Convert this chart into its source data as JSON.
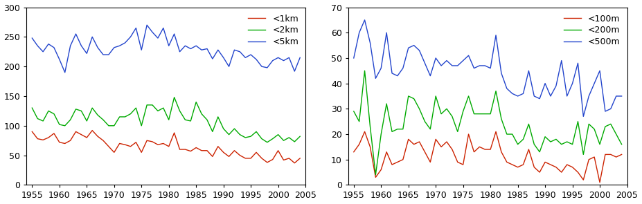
{
  "years": [
    1955,
    1956,
    1957,
    1958,
    1959,
    1960,
    1961,
    1962,
    1963,
    1964,
    1965,
    1966,
    1967,
    1968,
    1969,
    1970,
    1971,
    1972,
    1973,
    1974,
    1975,
    1976,
    1977,
    1978,
    1979,
    1980,
    1981,
    1982,
    1983,
    1984,
    1985,
    1986,
    1987,
    1988,
    1989,
    1990,
    1991,
    1992,
    1993,
    1994,
    1995,
    1996,
    1997,
    1998,
    1999,
    2000,
    2001,
    2002,
    2003,
    2004
  ],
  "left": {
    "lt1km": [
      90,
      78,
      76,
      80,
      87,
      72,
      70,
      75,
      90,
      85,
      80,
      92,
      82,
      75,
      65,
      55,
      70,
      68,
      65,
      72,
      55,
      75,
      73,
      68,
      70,
      65,
      88,
      60,
      60,
      57,
      63,
      58,
      58,
      48,
      65,
      55,
      48,
      58,
      50,
      45,
      45,
      55,
      45,
      38,
      43,
      58,
      42,
      45,
      37,
      45
    ],
    "lt2km": [
      130,
      112,
      108,
      125,
      120,
      102,
      100,
      110,
      128,
      125,
      108,
      130,
      118,
      110,
      100,
      100,
      115,
      115,
      120,
      130,
      100,
      135,
      135,
      125,
      130,
      110,
      148,
      125,
      110,
      108,
      140,
      120,
      110,
      90,
      115,
      95,
      85,
      95,
      85,
      80,
      82,
      90,
      78,
      72,
      78,
      85,
      75,
      80,
      73,
      82
    ],
    "lt5km": [
      248,
      235,
      225,
      238,
      232,
      212,
      190,
      235,
      255,
      235,
      222,
      250,
      232,
      220,
      220,
      232,
      235,
      240,
      250,
      265,
      228,
      270,
      258,
      248,
      265,
      235,
      255,
      225,
      235,
      230,
      235,
      228,
      230,
      213,
      228,
      215,
      200,
      228,
      225,
      215,
      220,
      212,
      200,
      198,
      210,
      215,
      210,
      215,
      192,
      215
    ]
  },
  "right": {
    "lt100m": [
      13,
      16,
      21,
      15,
      3,
      6,
      13,
      8,
      9,
      10,
      18,
      16,
      17,
      13,
      9,
      18,
      15,
      17,
      14,
      9,
      8,
      20,
      13,
      15,
      14,
      14,
      21,
      13,
      9,
      8,
      7,
      8,
      14,
      7,
      5,
      9,
      8,
      7,
      5,
      8,
      7,
      5,
      2,
      10,
      11,
      1,
      12,
      12,
      11,
      12
    ],
    "lt200m": [
      29,
      25,
      45,
      23,
      4,
      20,
      32,
      21,
      22,
      22,
      35,
      34,
      30,
      25,
      22,
      35,
      28,
      30,
      27,
      21,
      29,
      35,
      28,
      28,
      28,
      28,
      37,
      26,
      20,
      20,
      16,
      18,
      24,
      16,
      13,
      19,
      17,
      18,
      16,
      17,
      16,
      25,
      12,
      24,
      22,
      16,
      23,
      24,
      20,
      16
    ],
    "lt500m": [
      50,
      60,
      65,
      56,
      42,
      46,
      60,
      44,
      43,
      46,
      54,
      55,
      53,
      48,
      43,
      50,
      47,
      49,
      47,
      47,
      49,
      51,
      46,
      47,
      47,
      46,
      59,
      44,
      38,
      36,
      35,
      36,
      45,
      35,
      34,
      40,
      35,
      39,
      49,
      35,
      40,
      48,
      27,
      35,
      40,
      45,
      29,
      30,
      35,
      35
    ]
  },
  "left_ylim": [
    0,
    300
  ],
  "right_ylim": [
    0,
    70
  ],
  "left_yticks": [
    0,
    50,
    100,
    150,
    200,
    250,
    300
  ],
  "right_yticks": [
    0,
    10,
    20,
    30,
    40,
    50,
    60,
    70
  ],
  "xlim": [
    1954,
    2005
  ],
  "xticks": [
    1955,
    1960,
    1965,
    1970,
    1975,
    1980,
    1985,
    1990,
    1995,
    2000,
    2005
  ],
  "colors": {
    "red": "#cc2200",
    "green": "#00aa00",
    "blue": "#2244cc"
  },
  "left_labels": [
    "<1km",
    "<2km",
    "<5km"
  ],
  "right_labels": [
    "<100m",
    "<200m",
    "<500m"
  ],
  "bg_color": "#ffffff",
  "tick_fontsize": 9,
  "legend_fontsize": 9
}
